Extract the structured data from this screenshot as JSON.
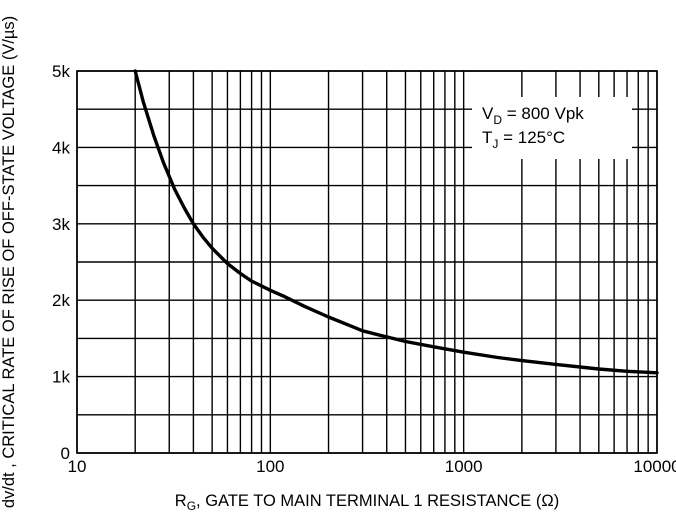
{
  "chart_data": {
    "type": "line",
    "title": "",
    "xlabel": {
      "main": "R",
      "sub": "G",
      "rest": ", GATE TO MAIN TERMINAL 1 RESISTANCE (Ω)"
    },
    "ylabel": "dv/dt , CRITICAL RATE OF RISE OF OFF-STATE VOLTAGE (V/µs)",
    "x_scale": "log",
    "xlim": [
      10,
      10000
    ],
    "ylim": [
      0,
      5000
    ],
    "x_ticks": [
      {
        "value": 10,
        "label": "10"
      },
      {
        "value": 100,
        "label": "100"
      },
      {
        "value": 1000,
        "label": "1000"
      },
      {
        "value": 10000,
        "label": "10000"
      }
    ],
    "y_ticks": [
      {
        "value": 0,
        "label": "0"
      },
      {
        "value": 1000,
        "label": "1k"
      },
      {
        "value": 2000,
        "label": "2k"
      },
      {
        "value": 3000,
        "label": "3k"
      },
      {
        "value": 4000,
        "label": "4k"
      },
      {
        "value": 5000,
        "label": "5k"
      }
    ],
    "y_minor_step": 500,
    "grid": true,
    "legend_position": "top-right",
    "annotations": [
      {
        "main": "V",
        "sub": "D",
        "rest": " = 800 Vpk"
      },
      {
        "main": "T",
        "sub": "J",
        "rest": " = 125°C"
      }
    ],
    "series": [
      {
        "x": [
          20,
          22,
          25,
          28,
          32,
          36,
          40,
          45,
          50,
          60,
          70,
          80,
          100,
          120,
          150,
          200,
          250,
          300,
          400,
          500,
          700,
          1000,
          1500,
          2000,
          3000,
          5000,
          7000,
          10000
        ],
        "y": [
          5000,
          4600,
          4150,
          3800,
          3450,
          3200,
          3000,
          2820,
          2680,
          2480,
          2350,
          2250,
          2130,
          2040,
          1920,
          1780,
          1680,
          1600,
          1520,
          1460,
          1390,
          1320,
          1250,
          1210,
          1160,
          1100,
          1070,
          1050
        ]
      }
    ],
    "line_color": "#000000"
  }
}
